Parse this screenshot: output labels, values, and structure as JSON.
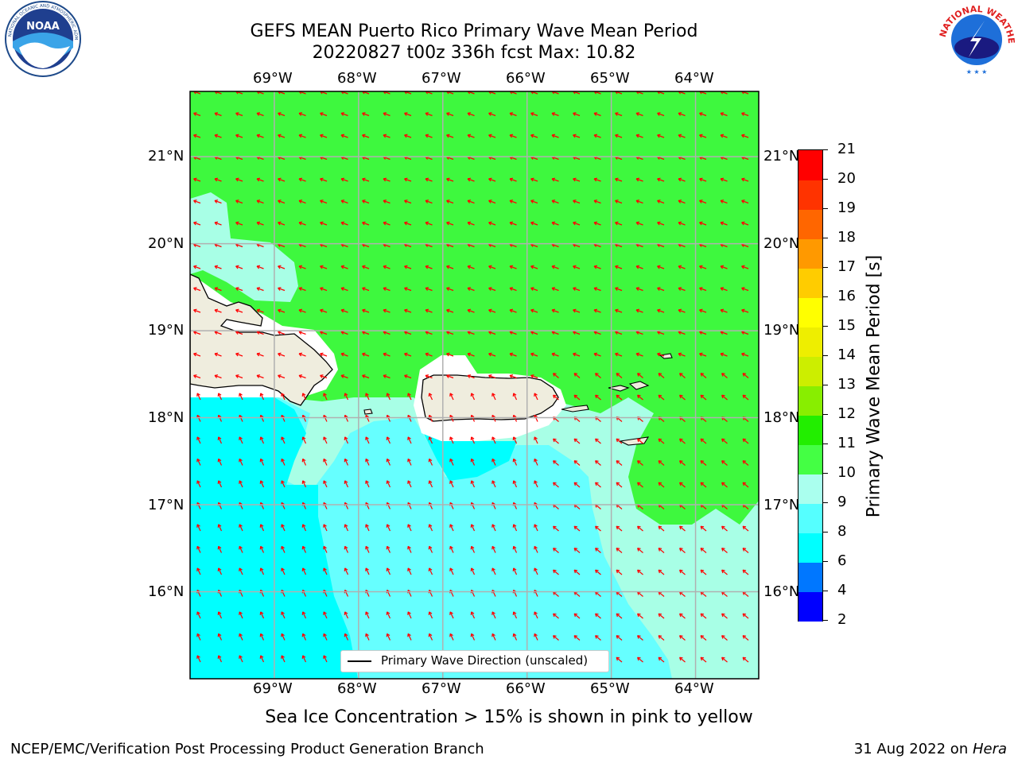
{
  "header": {
    "line1": "GEFS MEAN Puerto Rico Primary Wave Mean Period",
    "line2": "20220827 t00z 336h fcst   Max: 10.82"
  },
  "axes": {
    "longitude_labels": [
      "69°W",
      "68°W",
      "67°W",
      "66°W",
      "65°W",
      "64°W"
    ],
    "latitude_labels": [
      "21°N",
      "20°N",
      "19°N",
      "18°N",
      "17°N",
      "16°N"
    ],
    "lon_range": [
      -70.0,
      -63.25
    ],
    "lat_range": [
      15.0,
      21.75
    ]
  },
  "legend": {
    "label": "Primary Wave Direction (unscaled)",
    "arrow_color": "#ff0000"
  },
  "colorbar": {
    "title": "Primary Wave Mean Period [s]",
    "bounds": [
      2,
      4,
      6,
      8,
      9,
      10,
      11,
      12,
      13,
      14,
      15,
      16,
      17,
      18,
      19,
      20,
      21
    ],
    "colors": [
      "#0000ff",
      "#0077ff",
      "#00ffff",
      "#55ffff",
      "#aaffee",
      "#44ff44",
      "#22ee00",
      "#88ee00",
      "#ccee00",
      "#eeee00",
      "#ffff00",
      "#ffcc00",
      "#ff9900",
      "#ff6600",
      "#ff3300",
      "#ff0000"
    ]
  },
  "map_colors": {
    "green": "#3ef83e",
    "cyan": "#00ffff",
    "light_cyan": "#66ffff",
    "pale_aqua": "#a8ffe6",
    "land": "#efedde",
    "ocean_white": "#ffffff",
    "grid": "#b0b0b0"
  },
  "note": "Sea Ice Concentration > 15% is shown in pink to yellow",
  "footer": {
    "left": "NCEP/EMC/Verification Post Processing Product Generation Branch",
    "date": "31 Aug 2022 on ",
    "machine": "Hera"
  },
  "logos": {
    "noaa": {
      "text": "NOAA",
      "ring_text": "NATIONAL OCEANIC AND ATMOSPHERIC ADMINISTRATION · U.S. DEPARTMENT OF COMMERCE"
    },
    "nws": {
      "ring_text": "NATIONAL WEATHER SERVICE"
    }
  }
}
